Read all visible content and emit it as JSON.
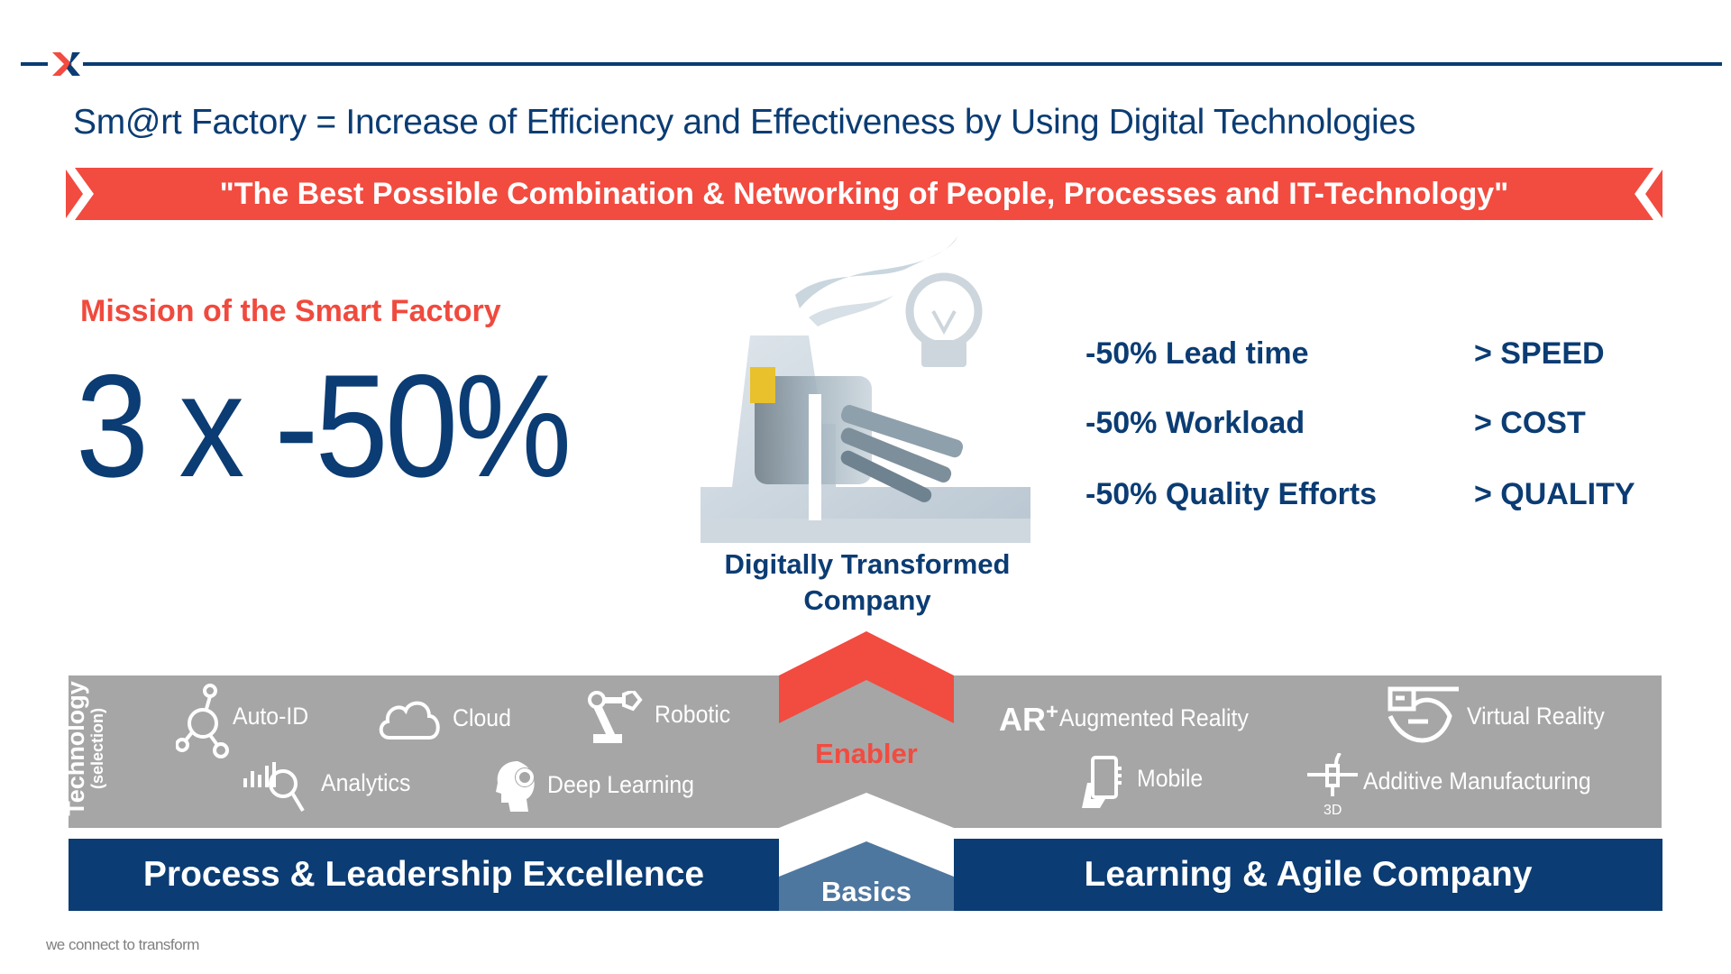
{
  "header": {
    "logo_text": "X",
    "title": "Sm@rt Factory = Increase of Efficiency and Effectiveness by Using Digital Technologies"
  },
  "banner": {
    "quote": "\"The Best Possible Combination & Networking of People, Processes and IT-Technology\""
  },
  "mission": {
    "heading": "Mission of the Smart Factory",
    "headline": "3 x -50%"
  },
  "center": {
    "caption_line1": "Digitally Transformed",
    "caption_line2": "Company"
  },
  "metrics": [
    {
      "label": "-50% Lead time",
      "goal": "> SPEED"
    },
    {
      "label": "-50% Workload",
      "goal": "> COST"
    },
    {
      "label": "-50% Quality Efforts",
      "goal": "> QUALITY"
    }
  ],
  "technology": {
    "title": "Technology",
    "subtitle": "(selection)",
    "items": [
      {
        "label": "Auto-ID",
        "icon": "network-node-icon"
      },
      {
        "label": "Cloud",
        "icon": "cloud-icon"
      },
      {
        "label": "Robotic",
        "icon": "robot-arm-icon"
      },
      {
        "label": "Analytics",
        "icon": "analytics-icon"
      },
      {
        "label": "Deep Learning",
        "icon": "brain-gear-icon"
      },
      {
        "label": "Augmented Reality",
        "icon": "ar-icon",
        "icon_text": "AR"
      },
      {
        "label": "Virtual Reality",
        "icon": "vr-eye-icon"
      },
      {
        "label": "Mobile",
        "icon": "mobile-hand-icon"
      },
      {
        "label": "Additive Manufacturing",
        "icon": "3d-printer-icon"
      }
    ]
  },
  "enabler": "Enabler",
  "basics": "Basics",
  "pillars": {
    "left": "Process & Leadership Excellence",
    "right": "Learning & Agile Company"
  },
  "footer": {
    "tagline": "we connect to transform"
  },
  "colors": {
    "navy": "#0b3c73",
    "red": "#f24b40",
    "gray": "#a6a6a6",
    "steel": "#4e77a0"
  }
}
